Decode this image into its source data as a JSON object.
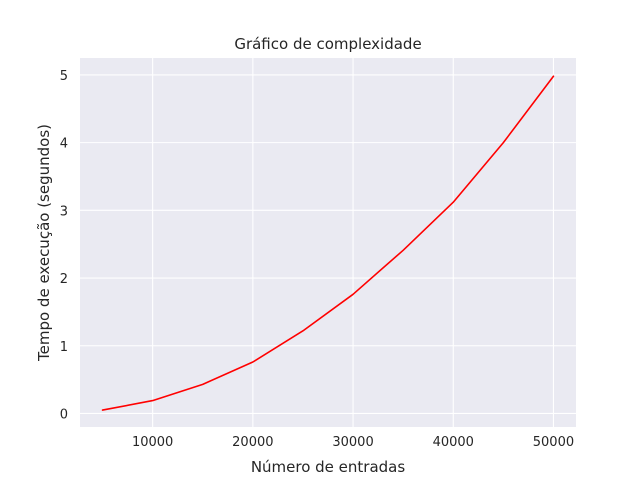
{
  "chart_data": {
    "type": "line",
    "title": "Gráfico de complexidade",
    "xlabel": "Número de entradas",
    "ylabel": "Tempo de execução (segundos)",
    "xlim": [
      2750,
      52250
    ],
    "ylim": [
      -0.2,
      5.25
    ],
    "xticks": [
      10000,
      20000,
      30000,
      40000,
      50000
    ],
    "xtick_labels": [
      "10000",
      "20000",
      "30000",
      "40000",
      "50000"
    ],
    "yticks": [
      0,
      1,
      2,
      3,
      4,
      5
    ],
    "ytick_labels": [
      "0",
      "1",
      "2",
      "3",
      "4",
      "5"
    ],
    "grid": true,
    "legend": "none",
    "colors": {
      "plot_background": "#eaeaf2",
      "grid": "#ffffff",
      "line": "#ff0000"
    },
    "series": [
      {
        "x": [
          5000,
          10000,
          15000,
          20000,
          25000,
          30000,
          35000,
          40000,
          45000,
          50000
        ],
        "values": [
          0.05,
          0.19,
          0.43,
          0.76,
          1.22,
          1.76,
          2.41,
          3.12,
          4.0,
          4.98
        ]
      }
    ]
  }
}
